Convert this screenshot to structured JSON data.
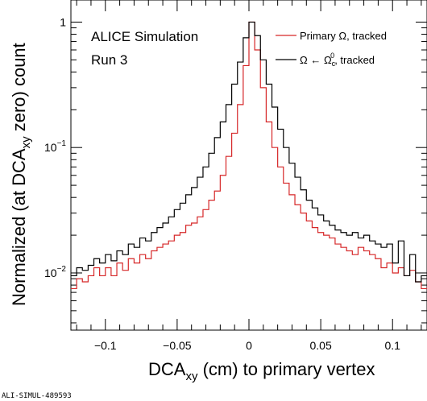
{
  "chart_data": {
    "type": "line",
    "step": true,
    "xlabel": {
      "main": "DCA",
      "sub": "xy",
      "tail": " (cm) to primary vertex"
    },
    "ylabel": {
      "main": "Normalized (at DCA",
      "sub": "xy",
      "tail": " zero) count"
    },
    "xlim": [
      -0.124,
      0.124
    ],
    "ylim": [
      0.0035,
      1.5
    ],
    "yscale": "log",
    "x_ticks": [
      {
        "value": -0.1,
        "label": "−0.1"
      },
      {
        "value": -0.05,
        "label": "−0.05"
      },
      {
        "value": 0,
        "label": "0"
      },
      {
        "value": 0.05,
        "label": "0.05"
      },
      {
        "value": 0.1,
        "label": "0.1"
      }
    ],
    "y_ticks": [
      {
        "value": 1,
        "base": "1",
        "exp": ""
      },
      {
        "value": 0.1,
        "base": "10",
        "exp": "−1"
      },
      {
        "value": 0.01,
        "base": "10",
        "exp": "−2"
      }
    ],
    "annotations": {
      "line1": "ALICE Simulation",
      "line2": "Run 3"
    },
    "legend": {
      "position": "top-right",
      "primary": {
        "text": "Primary Ω, tracked"
      },
      "charm": {
        "pre": "Ω ← Ω",
        "sup": "0",
        "sub": "c",
        "post": ", tracked"
      }
    },
    "bin_edges_x": [
      -0.124,
      0.124
    ],
    "series": [
      {
        "key": "primary",
        "color": "#d62728",
        "x": [
          -0.124,
          -0.12,
          -0.116,
          -0.112,
          -0.108,
          -0.104,
          -0.1,
          -0.096,
          -0.092,
          -0.088,
          -0.084,
          -0.08,
          -0.076,
          -0.072,
          -0.068,
          -0.064,
          -0.06,
          -0.056,
          -0.052,
          -0.048,
          -0.044,
          -0.04,
          -0.036,
          -0.032,
          -0.028,
          -0.024,
          -0.02,
          -0.016,
          -0.012,
          -0.008,
          -0.004,
          0,
          0.004,
          0.008,
          0.012,
          0.016,
          0.02,
          0.024,
          0.028,
          0.032,
          0.036,
          0.04,
          0.044,
          0.048,
          0.052,
          0.056,
          0.06,
          0.064,
          0.068,
          0.072,
          0.076,
          0.08,
          0.084,
          0.088,
          0.092,
          0.096,
          0.1,
          0.104,
          0.108,
          0.112,
          0.116,
          0.12
        ],
        "y": [
          0.0075,
          0.009,
          0.0085,
          0.0095,
          0.011,
          0.0095,
          0.011,
          0.0095,
          0.012,
          0.0105,
          0.013,
          0.012,
          0.014,
          0.013,
          0.015,
          0.016,
          0.017,
          0.018,
          0.02,
          0.021,
          0.024,
          0.025,
          0.028,
          0.032,
          0.038,
          0.045,
          0.06,
          0.085,
          0.13,
          0.22,
          0.45,
          1.0,
          0.6,
          0.3,
          0.16,
          0.1,
          0.07,
          0.052,
          0.042,
          0.035,
          0.03,
          0.026,
          0.023,
          0.021,
          0.02,
          0.019,
          0.017,
          0.016,
          0.015,
          0.014,
          0.016,
          0.015,
          0.014,
          0.013,
          0.011,
          0.012,
          0.01,
          0.011,
          0.0095,
          0.0105,
          0.0085,
          0.0075
        ]
      },
      {
        "key": "charm",
        "color": "#000000",
        "x": [
          -0.124,
          -0.12,
          -0.116,
          -0.112,
          -0.108,
          -0.104,
          -0.1,
          -0.096,
          -0.092,
          -0.088,
          -0.084,
          -0.08,
          -0.076,
          -0.072,
          -0.068,
          -0.064,
          -0.06,
          -0.056,
          -0.052,
          -0.048,
          -0.044,
          -0.04,
          -0.036,
          -0.032,
          -0.028,
          -0.024,
          -0.02,
          -0.016,
          -0.012,
          -0.008,
          -0.004,
          0,
          0.004,
          0.008,
          0.012,
          0.016,
          0.02,
          0.024,
          0.028,
          0.032,
          0.036,
          0.04,
          0.044,
          0.048,
          0.052,
          0.056,
          0.06,
          0.064,
          0.068,
          0.072,
          0.076,
          0.08,
          0.084,
          0.088,
          0.092,
          0.096,
          0.1,
          0.104,
          0.108,
          0.112,
          0.116,
          0.12
        ],
        "y": [
          0.0095,
          0.011,
          0.0105,
          0.0115,
          0.013,
          0.012,
          0.014,
          0.0125,
          0.015,
          0.014,
          0.017,
          0.016,
          0.019,
          0.018,
          0.021,
          0.023,
          0.025,
          0.028,
          0.032,
          0.036,
          0.042,
          0.048,
          0.058,
          0.07,
          0.09,
          0.12,
          0.16,
          0.22,
          0.32,
          0.48,
          0.75,
          1.0,
          0.78,
          0.5,
          0.32,
          0.21,
          0.14,
          0.1,
          0.075,
          0.058,
          0.046,
          0.038,
          0.033,
          0.029,
          0.026,
          0.024,
          0.022,
          0.021,
          0.02,
          0.021,
          0.019,
          0.02,
          0.018,
          0.017,
          0.016,
          0.017,
          0.012,
          0.018,
          0.0095,
          0.014,
          0.0085,
          0.0095
        ]
      }
    ]
  },
  "footer": {
    "id": "ALI-SIMUL-489593"
  }
}
